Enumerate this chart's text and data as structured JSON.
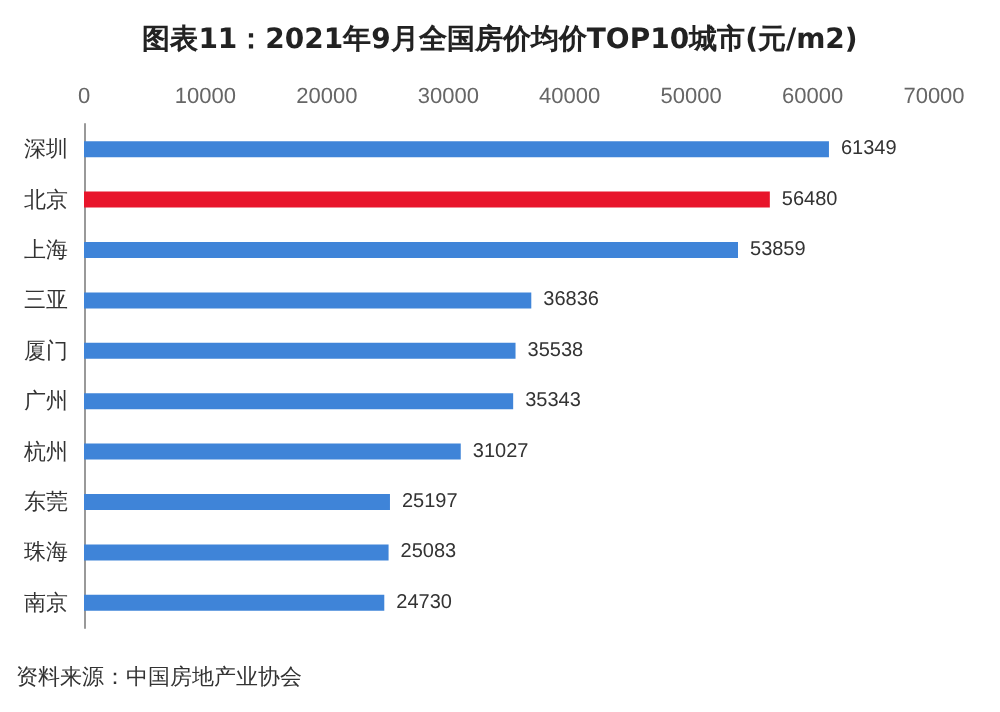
{
  "chart_data": {
    "type": "bar",
    "orientation": "horizontal",
    "title": "图表11：2021年9月全国房价均价TOP10城市(元/m2)",
    "categories": [
      "深圳",
      "北京",
      "上海",
      "三亚",
      "厦门",
      "广州",
      "杭州",
      "东莞",
      "珠海",
      "南京"
    ],
    "values": [
      61349,
      56480,
      53859,
      36836,
      35538,
      35343,
      31027,
      25197,
      25083,
      24730
    ],
    "colors": [
      "#3f84d8",
      "#e8152b",
      "#3f84d8",
      "#3f84d8",
      "#3f84d8",
      "#3f84d8",
      "#3f84d8",
      "#3f84d8",
      "#3f84d8",
      "#3f84d8"
    ],
    "xlim": [
      0,
      70000
    ],
    "xticks": [
      0,
      10000,
      20000,
      30000,
      40000,
      50000,
      60000,
      70000
    ],
    "data_labels": true,
    "grid": false,
    "annotations": [
      "资料来源：中国房地产业协会"
    ]
  }
}
